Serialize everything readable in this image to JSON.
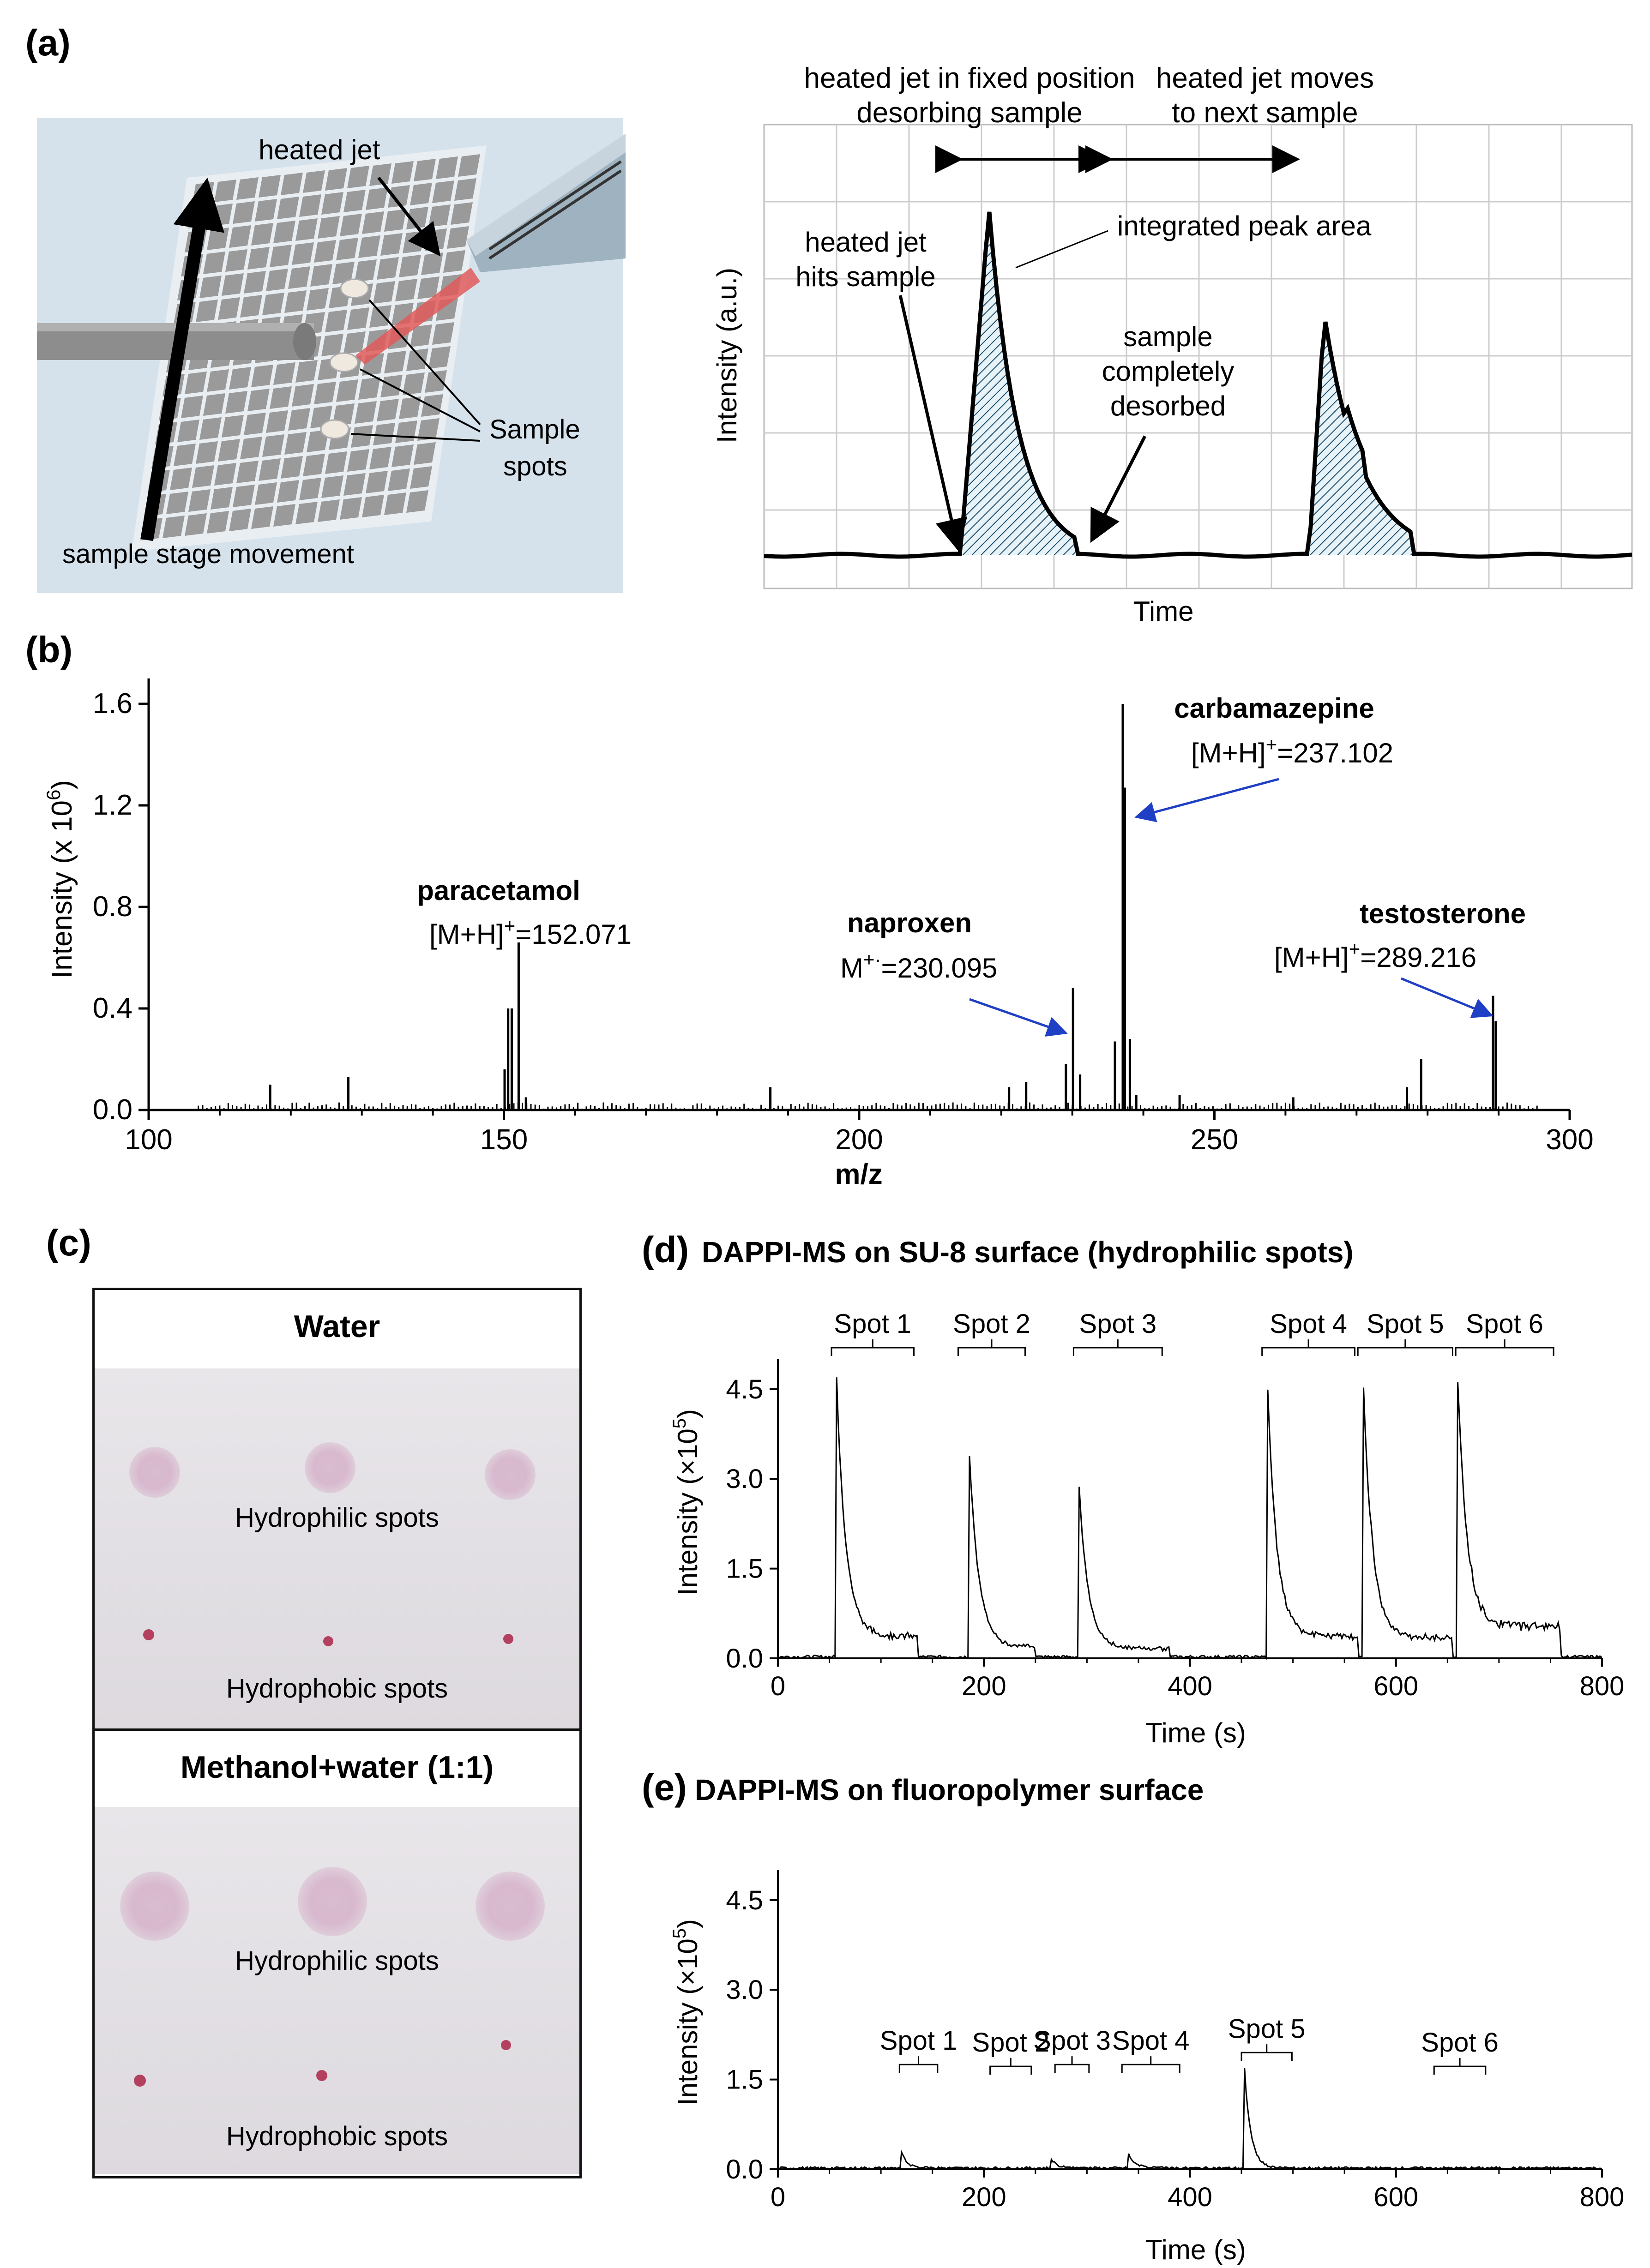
{
  "panel_labels": {
    "a": "(a)",
    "b": "(b)",
    "c": "(c)",
    "d": "(d)",
    "e": "(e)"
  },
  "schematic": {
    "heated_jet": "heated jet",
    "sample_spots_line1": "Sample",
    "sample_spots_line2": "spots",
    "stage_movement": "sample stage movement"
  },
  "concept_plot": {
    "xlabel": "Time",
    "ylabel": "Intensity (a.u.)",
    "annot_fixed_line1": "heated jet in fixed position",
    "annot_fixed_line2": "desorbing sample",
    "annot_moves_line1": "heated jet moves",
    "annot_moves_line2": "to next sample",
    "annot_hits_line1": "heated jet",
    "annot_hits_line2": "hits sample",
    "annot_area": "integrated peak area",
    "annot_desorbed_line1": "sample",
    "annot_desorbed_line2": "completely",
    "annot_desorbed_line3": "desorbed"
  },
  "photos": {
    "top_title": "Water",
    "bottom_title": "Methanol+water (1:1)",
    "hydrophilic": "Hydrophilic spots",
    "hydrophobic": "Hydrophobic spots"
  },
  "colors": {
    "arrow_blue": "#1f3fc4",
    "hatch": "#1a4e6e",
    "jet_red": "#e05a5a",
    "stage": "#8c8c8c",
    "schematic_bg": "#d5e2ec"
  },
  "chart_data": [
    {
      "id": "b",
      "type": "bar",
      "title": "",
      "xlabel": "m/z",
      "ylabel_prefix": "Intensity (x 10",
      "ylabel_exp": "6",
      "ylabel_suffix": ")",
      "xlim": [
        100,
        300
      ],
      "ylim": [
        0,
        1.7
      ],
      "xticks": [
        100,
        150,
        200,
        250,
        300
      ],
      "yticks": [
        0.0,
        0.4,
        0.8,
        1.2,
        1.6
      ],
      "ytick_labels": [
        "0.0",
        "0.4",
        "0.8",
        "1.2",
        "1.6"
      ],
      "major_peaks": [
        [
          117.1,
          0.1
        ],
        [
          128.1,
          0.13
        ],
        [
          150.1,
          0.16
        ],
        [
          150.6,
          0.4
        ],
        [
          151.1,
          0.4
        ],
        [
          152.07,
          0.66
        ],
        [
          153.1,
          0.05
        ],
        [
          187.5,
          0.09
        ],
        [
          221.1,
          0.09
        ],
        [
          223.5,
          0.11
        ],
        [
          229.1,
          0.18
        ],
        [
          230.095,
          0.48
        ],
        [
          231.1,
          0.14
        ],
        [
          236.0,
          0.27
        ],
        [
          237.102,
          1.6
        ],
        [
          237.4,
          1.27
        ],
        [
          238.1,
          0.28
        ],
        [
          239.0,
          0.06
        ],
        [
          245.1,
          0.06
        ],
        [
          261.1,
          0.05
        ],
        [
          277.1,
          0.09
        ],
        [
          279.1,
          0.2
        ],
        [
          289.216,
          0.45
        ],
        [
          289.6,
          0.35
        ]
      ],
      "annotations": [
        {
          "name": "paracetamol",
          "ion_prefix": "[M+H]",
          "ion_sup": "+",
          "ion_suffix": "=152.071",
          "mz": 152.071
        },
        {
          "name": "naproxen",
          "ion_prefix": "M",
          "ion_sup": "+·",
          "ion_suffix": "=230.095",
          "mz": 230.095
        },
        {
          "name": "carbamazepine",
          "ion_prefix": "[M+H]",
          "ion_sup": "+",
          "ion_suffix": "=237.102",
          "mz": 237.102
        },
        {
          "name": "testosterone",
          "ion_prefix": "[M+H]",
          "ion_sup": "+",
          "ion_suffix": "=289.216",
          "mz": 289.216
        }
      ]
    },
    {
      "id": "d",
      "type": "line",
      "title": "DAPPI-MS on SU-8 surface (hydrophilic spots)",
      "xlabel": "Time (s)",
      "ylabel_prefix": "Intensity (×10",
      "ylabel_exp": "5",
      "ylabel_suffix": ")",
      "xlim": [
        0,
        800
      ],
      "ylim": [
        0,
        5.0
      ],
      "xticks": [
        0,
        200,
        400,
        600,
        800
      ],
      "yticks": [
        0,
        1.5,
        3.0,
        4.5
      ],
      "ytick_labels": [
        "0.0",
        "1.5",
        "3.0",
        "4.5"
      ],
      "peaks": [
        {
          "t": 57,
          "h": 4.6,
          "tail": 0.3,
          "end": 135
        },
        {
          "t": 186,
          "h": 3.35,
          "tail": 0.15,
          "end": 250
        },
        {
          "t": 292,
          "h": 2.95,
          "tail": 0.12,
          "end": 380
        },
        {
          "t": 475,
          "h": 4.65,
          "tail": 0.3,
          "end": 563
        },
        {
          "t": 568,
          "h": 4.7,
          "tail": 0.28,
          "end": 655
        },
        {
          "t": 660,
          "h": 4.55,
          "tail": 0.45,
          "end": 760
        }
      ],
      "spots": [
        {
          "label": "Spot 1",
          "x0": 52,
          "x1": 132
        },
        {
          "label": "Spot 2",
          "x0": 175,
          "x1": 240
        },
        {
          "label": "Spot 3",
          "x0": 287,
          "x1": 373
        },
        {
          "label": "Spot 4",
          "x0": 470,
          "x1": 560
        },
        {
          "label": "Spot 5",
          "x0": 563,
          "x1": 655
        },
        {
          "label": "Spot 6",
          "x0": 658,
          "x1": 753
        }
      ]
    },
    {
      "id": "e",
      "type": "line",
      "title": "DAPPI-MS on fluoropolymer surface",
      "xlabel": "Time (s)",
      "ylabel_prefix": "Intensity (×10",
      "ylabel_exp": "5",
      "ylabel_suffix": ")",
      "xlim": [
        0,
        800
      ],
      "ylim": [
        0,
        5.0
      ],
      "xticks": [
        0,
        200,
        400,
        600,
        800
      ],
      "yticks": [
        0,
        1.5,
        3.0,
        4.5
      ],
      "ytick_labels": [
        "0.0",
        "1.5",
        "3.0",
        "4.5"
      ],
      "peaks": [
        {
          "t": 120,
          "h": 0.25,
          "tail": 0.0,
          "end": 160
        },
        {
          "t": 265,
          "h": 0.15,
          "tail": 0.0,
          "end": 300
        },
        {
          "t": 340,
          "h": 0.25,
          "tail": 0.0,
          "end": 385
        },
        {
          "t": 453,
          "h": 1.65,
          "tail": 0.0,
          "end": 495
        }
      ],
      "spots": [
        {
          "label": "Spot 1",
          "x0": 118,
          "x1": 155,
          "ly": 1.75
        },
        {
          "label": "Spot 2",
          "x0": 206,
          "x1": 246,
          "ly": 1.72
        },
        {
          "label": "Spot 3",
          "x0": 269,
          "x1": 302,
          "ly": 1.75
        },
        {
          "label": "Spot 4",
          "x0": 334,
          "x1": 390,
          "ly": 1.75
        },
        {
          "label": "Spot 5",
          "x0": 450,
          "x1": 499,
          "ly": 1.95
        },
        {
          "label": "Spot 6",
          "x0": 637,
          "x1": 687,
          "ly": 1.72
        }
      ]
    }
  ]
}
